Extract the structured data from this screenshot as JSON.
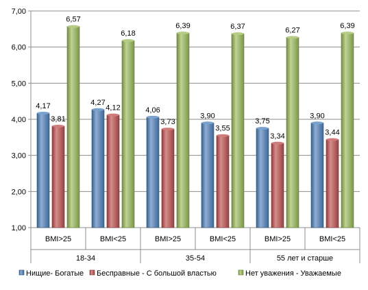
{
  "chart_data": {
    "type": "bar",
    "ylim": [
      1.0,
      7.0
    ],
    "yticks": [
      "1,00",
      "2,00",
      "3,00",
      "4,00",
      "5,00",
      "6,00",
      "7,00"
    ],
    "grid": true,
    "legend_position": "bottom",
    "categories": [
      "BMI>25",
      "BMI<25",
      "BMI>25",
      "BMI<25",
      "BMI>25",
      "BMI<25"
    ],
    "groups": [
      {
        "label": "18-34",
        "span": 2
      },
      {
        "label": "35-54",
        "span": 2
      },
      {
        "label": "55 лет и старше",
        "span": 2
      }
    ],
    "series": [
      {
        "name": "Нищие- Богатые",
        "color": "#4F81BD",
        "values": [
          4.17,
          4.27,
          4.06,
          3.9,
          3.75,
          3.9
        ],
        "labels": [
          "4,17",
          "4,27",
          "4,06",
          "3,90",
          "3,75",
          "3,90"
        ]
      },
      {
        "name": "Бесправные - С большой властью",
        "color": "#C0504D",
        "values": [
          3.81,
          4.12,
          3.73,
          3.55,
          3.34,
          3.44
        ],
        "labels": [
          "3,81",
          "4,12",
          "3,73",
          "3,55",
          "3,34",
          "3,44"
        ]
      },
      {
        "name": "Нет уважения - Уважаемые",
        "color": "#9BBB59",
        "values": [
          6.57,
          6.18,
          6.39,
          6.37,
          6.27,
          6.39
        ],
        "labels": [
          "6,57",
          "6,18",
          "6,39",
          "6,37",
          "6,27",
          "6,39"
        ]
      }
    ]
  }
}
